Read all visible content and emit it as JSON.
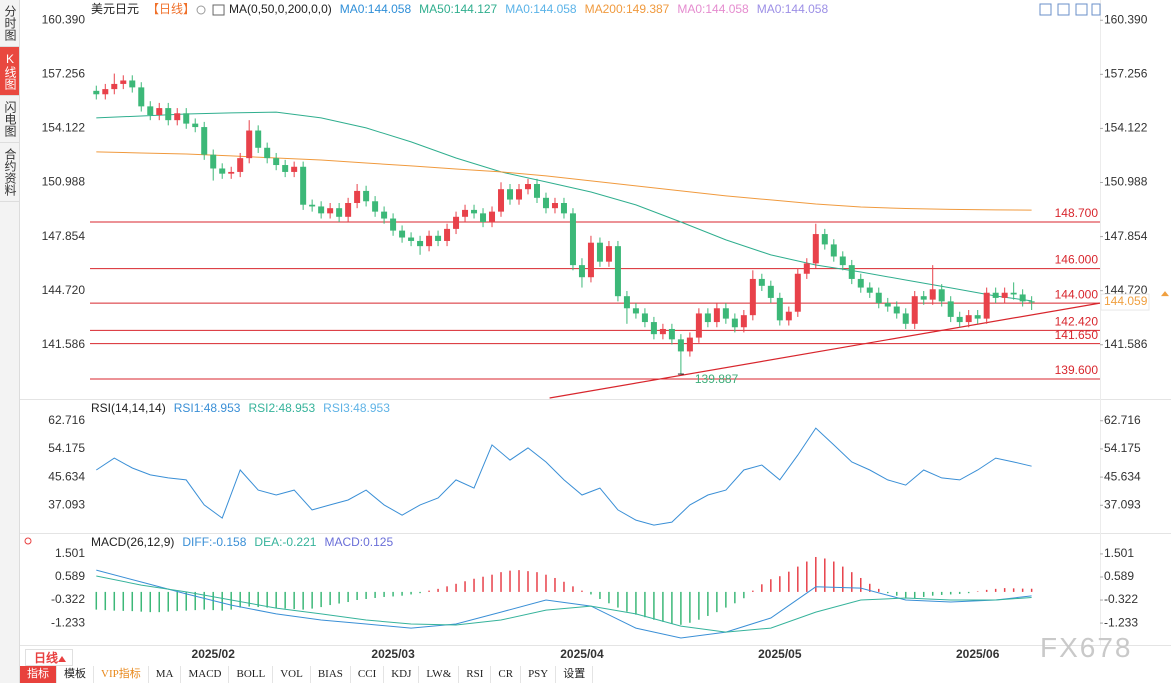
{
  "sidebar_tabs": [
    "分时图",
    "K线图",
    "闪电图",
    "合约资料"
  ],
  "period_button": "日线",
  "toolbar": [
    "指标",
    "模板",
    "VIP指标",
    "MA",
    "MACD",
    "BOLL",
    "VOL",
    "BIAS",
    "CCI",
    "KDJ",
    "LW&",
    "RSI",
    "CR",
    "PSY",
    "设置"
  ],
  "watermark": "FX678",
  "chart_data": [
    {
      "type": "candlestick",
      "title": "美元日元",
      "subtitle": "【日线】",
      "indicator": "MA(0,50,0,200,0,0)",
      "up_color": "#e8414a",
      "down_color": "#3cb878",
      "level_color": "#d8262d",
      "xlim": [
        -0.7,
        111.6
      ],
      "ylim": [
        138.5,
        161.1
      ],
      "yticks": [
        {
          "value": 160.39,
          "label": "160.390"
        },
        157.256,
        154.122,
        150.988,
        147.854,
        {
          "value": 144.72,
          "label": "144.720"
        },
        141.586
      ],
      "categories": [
        null,
        null,
        null,
        null,
        null,
        null,
        null,
        null,
        null,
        null,
        null,
        null,
        null,
        "2025/02",
        null,
        null,
        null,
        null,
        null,
        null,
        null,
        null,
        null,
        null,
        null,
        null,
        null,
        null,
        null,
        null,
        null,
        null,
        null,
        "2025/03",
        null,
        null,
        null,
        null,
        null,
        null,
        null,
        null,
        null,
        null,
        null,
        null,
        null,
        null,
        null,
        null,
        null,
        null,
        null,
        null,
        "2025/04",
        null,
        null,
        null,
        null,
        null,
        null,
        null,
        null,
        null,
        null,
        null,
        null,
        null,
        null,
        null,
        null,
        null,
        null,
        null,
        null,
        null,
        "2025/05",
        null,
        null,
        null,
        null,
        null,
        null,
        null,
        null,
        null,
        null,
        null,
        null,
        null,
        null,
        null,
        null,
        null,
        null,
        null,
        null,
        null,
        "2025/06",
        null,
        null,
        null,
        null,
        null,
        null
      ],
      "open": [
        156.3,
        156.1,
        156.4,
        156.7,
        156.9,
        156.5,
        155.4,
        154.9,
        155.3,
        154.6,
        155.0,
        154.4,
        154.2,
        152.6,
        151.8,
        151.5,
        151.6,
        152.4,
        154.0,
        153.0,
        152.4,
        152.0,
        151.6,
        151.9,
        149.7,
        149.6,
        149.2,
        149.5,
        149.0,
        149.8,
        150.5,
        149.9,
        149.3,
        148.9,
        148.2,
        147.8,
        147.6,
        147.3,
        147.9,
        147.6,
        148.3,
        149.0,
        149.4,
        149.2,
        148.7,
        149.3,
        150.6,
        150.0,
        150.6,
        150.9,
        150.1,
        149.5,
        149.8,
        149.2,
        146.2,
        145.5,
        147.5,
        146.4,
        147.3,
        144.4,
        143.7,
        143.4,
        142.9,
        142.2,
        142.5,
        141.9,
        141.2,
        142.0,
        143.4,
        142.9,
        143.7,
        143.1,
        142.6,
        143.3,
        145.4,
        145.0,
        144.3,
        143.0,
        143.5,
        145.7,
        146.3,
        148.0,
        147.4,
        146.7,
        146.2,
        145.4,
        144.9,
        144.6,
        144.0,
        143.8,
        143.4,
        142.8,
        144.4,
        144.2,
        144.8,
        144.1,
        143.2,
        142.9,
        143.3,
        143.1,
        144.6,
        144.3,
        144.6,
        144.5,
        144.1
      ],
      "high": [
        156.6,
        156.7,
        157.3,
        157.2,
        157.2,
        156.8,
        155.7,
        155.6,
        155.6,
        155.3,
        155.3,
        154.7,
        154.5,
        152.9,
        152.1,
        151.9,
        152.7,
        154.6,
        154.3,
        153.3,
        152.7,
        152.3,
        152.2,
        152.2,
        150.0,
        149.9,
        149.8,
        149.8,
        150.1,
        150.9,
        150.8,
        150.2,
        149.6,
        149.2,
        148.5,
        148.1,
        147.9,
        148.2,
        148.2,
        148.6,
        149.3,
        149.7,
        149.7,
        149.5,
        149.6,
        151.0,
        150.9,
        150.9,
        151.2,
        151.2,
        150.4,
        150.1,
        150.1,
        149.5,
        146.6,
        147.9,
        147.8,
        147.6,
        147.6,
        144.7,
        144.0,
        143.7,
        143.2,
        142.8,
        142.8,
        142.2,
        142.3,
        143.7,
        143.7,
        144.0,
        144.0,
        143.4,
        143.6,
        145.9,
        145.7,
        145.3,
        144.6,
        143.8,
        146.0,
        146.6,
        148.6,
        148.3,
        147.7,
        147.0,
        146.5,
        145.7,
        145.2,
        144.9,
        144.3,
        144.1,
        143.7,
        144.7,
        144.7,
        146.2,
        145.1,
        144.4,
        143.5,
        143.6,
        143.6,
        144.9,
        144.9,
        144.9,
        145.2,
        144.8,
        144.4
      ],
      "low": [
        155.8,
        155.8,
        156.1,
        156.4,
        156.2,
        155.1,
        154.6,
        154.6,
        154.3,
        154.3,
        154.1,
        153.9,
        152.3,
        151.1,
        151.2,
        151.2,
        151.3,
        152.1,
        152.7,
        152.1,
        151.7,
        151.3,
        151.3,
        149.4,
        149.3,
        148.9,
        148.9,
        148.7,
        148.7,
        149.5,
        149.6,
        149.0,
        148.6,
        147.9,
        147.5,
        147.3,
        146.8,
        147.0,
        147.3,
        147.3,
        148.0,
        148.7,
        148.9,
        148.4,
        148.4,
        149.0,
        149.7,
        149.7,
        150.3,
        149.8,
        149.2,
        149.2,
        148.9,
        145.9,
        144.9,
        145.2,
        146.1,
        146.1,
        144.1,
        142.8,
        143.1,
        142.6,
        141.9,
        141.9,
        141.6,
        139.887,
        140.9,
        141.7,
        142.6,
        142.6,
        142.8,
        142.3,
        142.3,
        143.0,
        144.7,
        144.0,
        142.7,
        142.7,
        143.2,
        145.4,
        146.0,
        147.1,
        146.4,
        145.9,
        145.1,
        144.6,
        144.3,
        143.7,
        143.5,
        143.1,
        142.5,
        142.5,
        143.9,
        143.9,
        143.8,
        142.9,
        142.6,
        142.6,
        142.8,
        142.8,
        144.0,
        144.0,
        144.2,
        143.8,
        143.6
      ],
      "close": [
        156.1,
        156.4,
        156.7,
        156.9,
        156.5,
        155.4,
        154.9,
        155.3,
        154.6,
        155.0,
        154.4,
        154.2,
        152.6,
        151.8,
        151.5,
        151.6,
        152.4,
        154.0,
        153.0,
        152.4,
        152.0,
        151.6,
        151.9,
        149.7,
        149.6,
        149.2,
        149.5,
        149.0,
        149.8,
        150.5,
        149.9,
        149.3,
        148.9,
        148.2,
        147.8,
        147.6,
        147.3,
        147.9,
        147.6,
        148.3,
        149.0,
        149.4,
        149.2,
        148.7,
        149.3,
        150.6,
        150.0,
        150.6,
        150.9,
        150.1,
        149.5,
        149.8,
        149.2,
        146.2,
        145.5,
        147.5,
        146.4,
        147.3,
        144.4,
        143.7,
        143.4,
        142.9,
        142.2,
        142.5,
        141.9,
        141.2,
        142.0,
        143.4,
        142.9,
        143.7,
        143.1,
        142.6,
        143.3,
        145.4,
        145.0,
        144.3,
        143.0,
        143.5,
        145.7,
        146.3,
        148.0,
        147.4,
        146.7,
        146.2,
        145.4,
        144.9,
        144.6,
        144.0,
        143.8,
        143.4,
        142.8,
        144.4,
        144.2,
        144.8,
        144.1,
        143.2,
        142.9,
        143.3,
        143.1,
        144.6,
        144.3,
        144.6,
        144.5,
        144.1,
        144.059
      ],
      "last_price_color": "#f0a040",
      "series": [
        {
          "name": "MA0:144.058",
          "color": "#2f8fd8"
        },
        {
          "name": "MA50:144.127",
          "color": "#2fae8e",
          "x": [
            0,
            5,
            10,
            15,
            20,
            25,
            30,
            35,
            40,
            45,
            50,
            55,
            60,
            65,
            70,
            75,
            80,
            85,
            90,
            95,
            100,
            104
          ],
          "values": [
            154.73,
            154.84,
            154.96,
            155.02,
            155.07,
            154.73,
            154.15,
            153.34,
            152.41,
            151.6,
            151.02,
            150.44,
            149.69,
            148.7,
            147.66,
            146.79,
            146.21,
            145.8,
            145.34,
            144.88,
            144.41,
            144.127
          ]
        },
        {
          "name": "MA0:144.058",
          "color": "#5bb3e8"
        },
        {
          "name": "MA200:149.387",
          "color": "#f09a3e",
          "x": [
            0,
            5,
            10,
            15,
            20,
            25,
            30,
            35,
            40,
            45,
            50,
            55,
            60,
            65,
            70,
            75,
            80,
            85,
            90,
            95,
            100,
            104
          ],
          "values": [
            152.76,
            152.7,
            152.64,
            152.53,
            152.41,
            152.29,
            152.12,
            151.95,
            151.77,
            151.6,
            151.37,
            151.08,
            150.79,
            150.5,
            150.21,
            149.98,
            149.74,
            149.57,
            149.48,
            149.43,
            149.4,
            149.387
          ]
        },
        {
          "name": "MA0:144.058",
          "color": "#e58ccf"
        },
        {
          "name": "MA0:144.058",
          "color": "#9c8fe6"
        }
      ],
      "levels": [
        {
          "value": 148.7,
          "label": "148.700"
        },
        {
          "value": 146.0,
          "label": "146.000"
        },
        {
          "value": 144.0,
          "label": "144.000"
        },
        {
          "value": 142.42,
          "label": "142.420"
        },
        {
          "value": 141.65,
          "label": "141.650"
        },
        {
          "value": 139.6,
          "label": "139.600"
        }
      ],
      "trendline": {
        "color": "#d8262d",
        "x": [
          50.4,
          111.6
        ],
        "values": [
          138.5,
          144.0
        ]
      },
      "annotations": [
        {
          "x": 65,
          "value": 139.887,
          "color": "#3fae7a"
        }
      ]
    },
    {
      "type": "line",
      "title": "RSI(14,14,14)",
      "xlim": [
        -0.7,
        111.6
      ],
      "ylim": [
        29.6,
        68.4
      ],
      "yticks": [
        62.716,
        54.175,
        45.634,
        37.093
      ],
      "series": [
        {
          "name": "RSI1:48.953",
          "color": "#3a8fd6",
          "x": [
            0,
            2,
            4,
            6,
            8,
            10,
            12,
            14,
            16,
            18,
            20,
            22,
            24,
            26,
            28,
            30,
            32,
            34,
            36,
            38,
            40,
            42,
            44,
            46,
            48,
            50,
            52,
            54,
            56,
            58,
            60,
            62,
            64,
            66,
            68,
            70,
            72,
            74,
            76,
            78,
            80,
            82,
            84,
            86,
            88,
            90,
            92,
            94,
            96,
            98,
            100,
            102,
            104
          ],
          "values": [
            47.8,
            51.4,
            48.4,
            46.3,
            45.4,
            44.8,
            37.2,
            33.2,
            47.8,
            41.7,
            40.2,
            41.7,
            35.7,
            37.2,
            38.7,
            41.7,
            37.2,
            34.1,
            37.2,
            39.3,
            44.8,
            42.3,
            55.4,
            50.8,
            54.5,
            50.2,
            44.8,
            40.2,
            42.3,
            35.7,
            32.6,
            31.1,
            32.0,
            37.2,
            40.2,
            41.7,
            47.8,
            49.3,
            44.8,
            52.3,
            60.5,
            55.4,
            50.2,
            47.8,
            44.8,
            43.2,
            47.8,
            45.4,
            44.8,
            47.8,
            51.4,
            50.2,
            48.953
          ]
        },
        {
          "name": "RSI2:48.953",
          "color": "#36b39b"
        },
        {
          "name": "RSI3:48.953",
          "color": "#5fb3e6"
        }
      ]
    },
    {
      "type": "macd",
      "title": "MACD(26,12,9)",
      "xlim": [
        -0.7,
        111.6
      ],
      "ylim": [
        -1.98,
        2.13
      ],
      "yticks": [
        1.501,
        0.589,
        -0.322,
        -1.233
      ],
      "series": [
        {
          "name": "DIFF:-0.158",
          "color": "#3a8fd6",
          "x": [
            0,
            5,
            10,
            15,
            20,
            25,
            30,
            35,
            40,
            45,
            50,
            55,
            60,
            65,
            70,
            75,
            80,
            85,
            90,
            95,
            100,
            104
          ],
          "values": [
            0.86,
            0.39,
            -0.08,
            -0.52,
            -0.87,
            -1.11,
            -1.27,
            -1.43,
            -1.27,
            -0.8,
            -0.32,
            -0.56,
            -1.43,
            -1.82,
            -1.59,
            -1.03,
            0.2,
            0.15,
            -0.32,
            -0.4,
            -0.32,
            -0.158
          ]
        },
        {
          "name": "DEA:-0.221",
          "color": "#36b39b",
          "x": [
            0,
            5,
            10,
            15,
            20,
            25,
            30,
            35,
            40,
            45,
            50,
            55,
            60,
            65,
            70,
            75,
            80,
            85,
            90,
            95,
            100,
            104
          ],
          "values": [
            0.63,
            0.27,
            0.0,
            -0.32,
            -0.64,
            -0.87,
            -1.11,
            -1.27,
            -1.31,
            -1.11,
            -0.72,
            -0.56,
            -0.87,
            -1.35,
            -1.59,
            -1.43,
            -0.8,
            -0.32,
            -0.24,
            -0.32,
            -0.32,
            -0.221
          ]
        },
        {
          "name": "MACD:0.125",
          "color": "#6a6fd8",
          "up_color": "#e8414a",
          "down_color": "#3cb878",
          "values": [
            -0.7,
            -0.72,
            -0.74,
            -0.75,
            -0.76,
            -0.78,
            -0.8,
            -0.8,
            -0.78,
            -0.76,
            -0.74,
            -0.72,
            -0.7,
            -0.72,
            -0.74,
            -0.7,
            -0.62,
            -0.58,
            -0.6,
            -0.62,
            -0.64,
            -0.66,
            -0.68,
            -0.7,
            -0.66,
            -0.6,
            -0.52,
            -0.46,
            -0.4,
            -0.32,
            -0.28,
            -0.24,
            -0.2,
            -0.18,
            -0.15,
            -0.1,
            -0.05,
            0.05,
            0.12,
            0.22,
            0.32,
            0.42,
            0.52,
            0.6,
            0.68,
            0.78,
            0.84,
            0.86,
            0.82,
            0.78,
            0.68,
            0.55,
            0.4,
            0.22,
            0.05,
            -0.1,
            -0.28,
            -0.45,
            -0.62,
            -0.78,
            -0.9,
            -1.0,
            -1.1,
            -1.18,
            -1.25,
            -1.3,
            -1.22,
            -1.1,
            -0.95,
            -0.8,
            -0.62,
            -0.45,
            -0.25,
            0.05,
            0.3,
            0.5,
            0.62,
            0.8,
            1.0,
            1.2,
            1.38,
            1.32,
            1.2,
            1.0,
            0.78,
            0.55,
            0.32,
            0.12,
            -0.05,
            -0.15,
            -0.22,
            -0.25,
            -0.2,
            -0.15,
            -0.12,
            -0.1,
            -0.08,
            -0.05,
            0.02,
            0.08,
            0.12,
            0.15,
            0.14,
            0.13,
            0.125
          ]
        }
      ]
    }
  ]
}
